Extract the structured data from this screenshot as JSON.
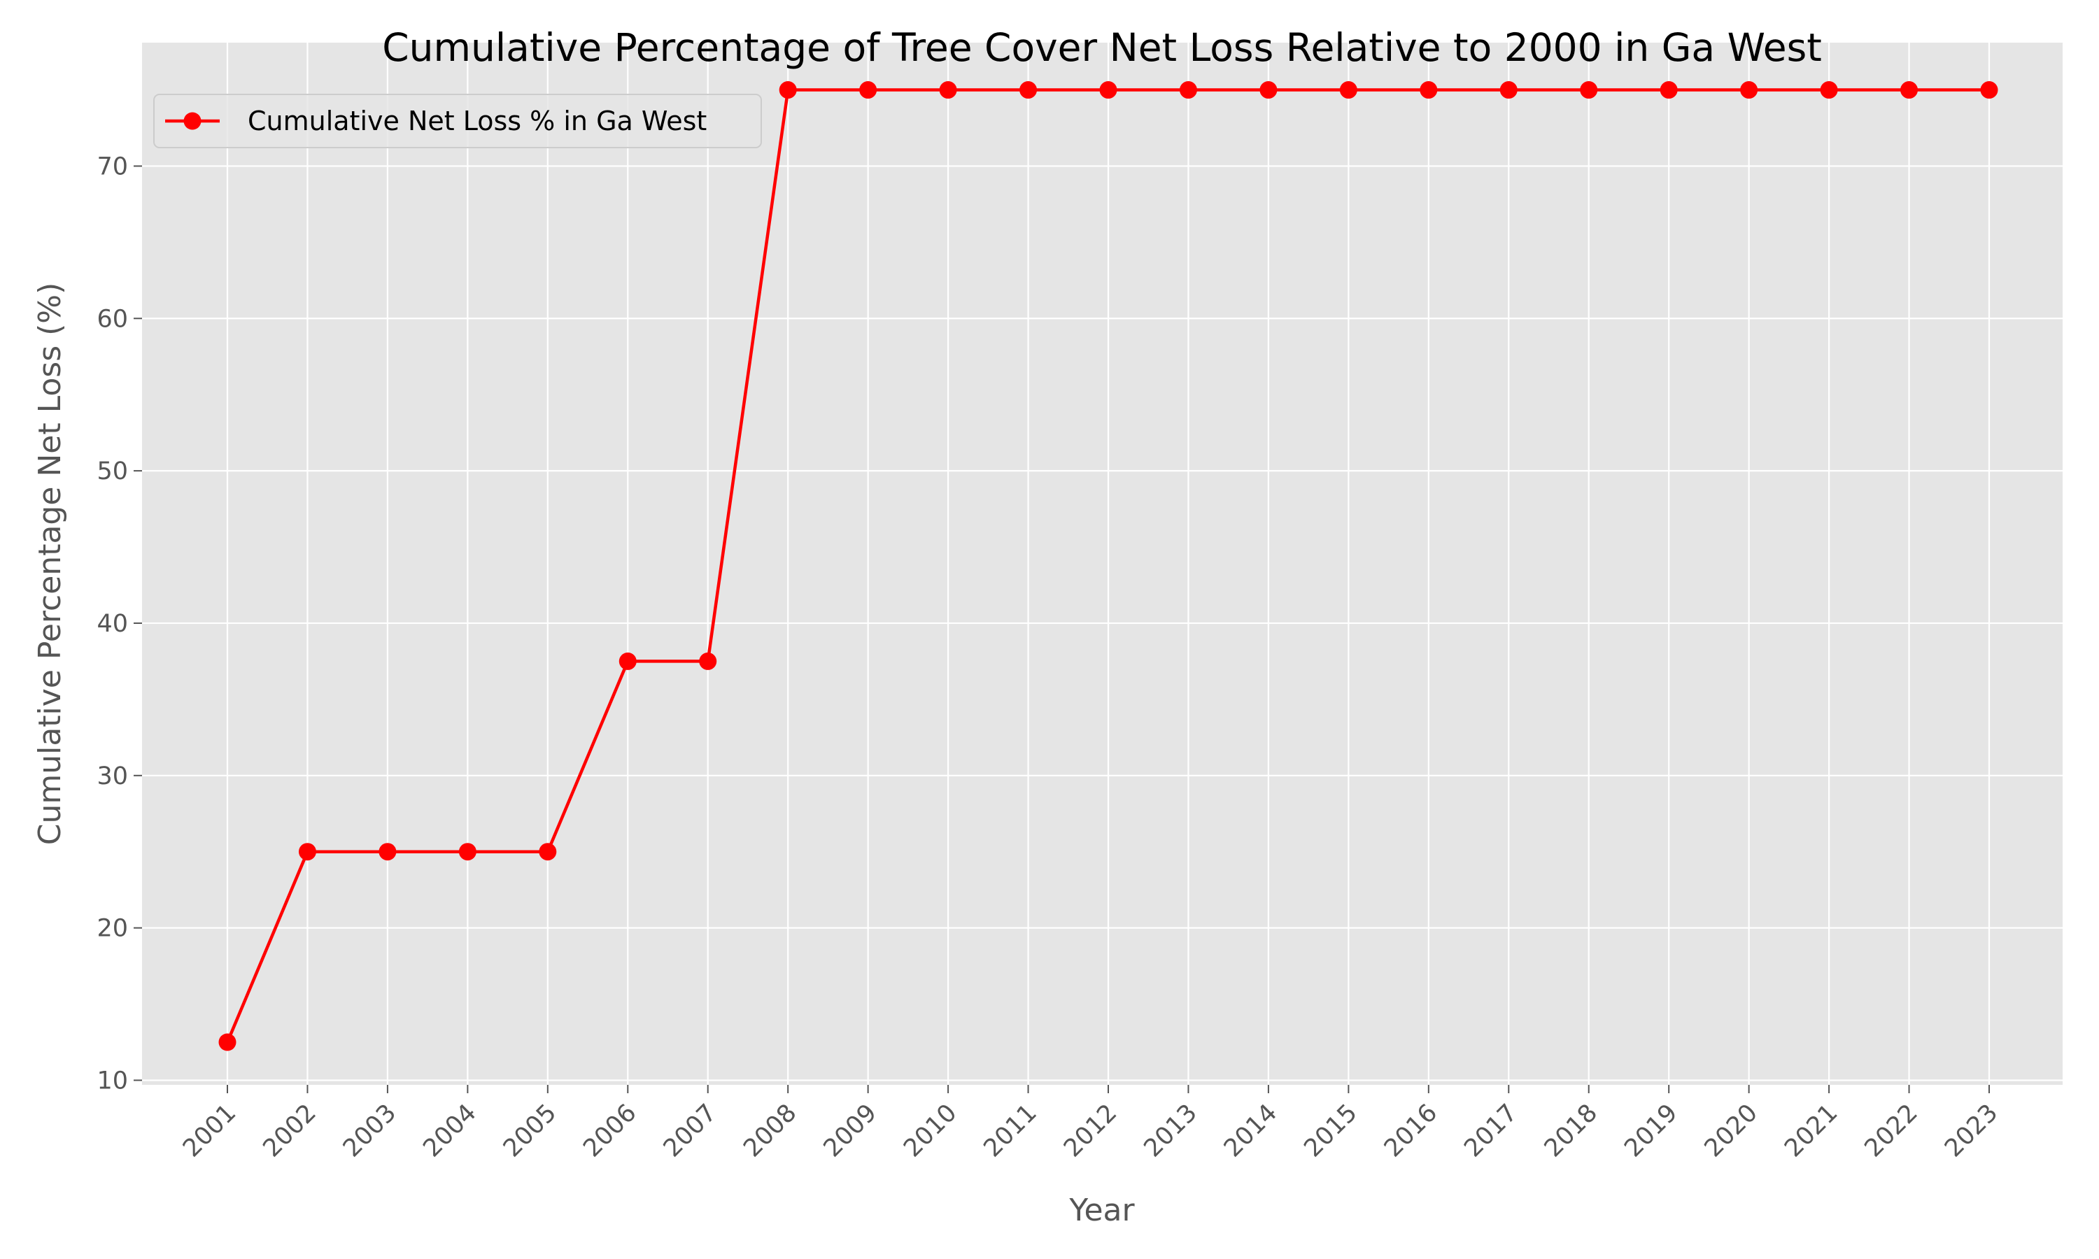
{
  "chart_data": {
    "type": "line",
    "title": "Cumulative Percentage of Tree Cover Net Loss Relative to 2000 in Ga West",
    "xlabel": "Year",
    "ylabel": "Cumulative Percentage Net Loss (%)",
    "categories": [
      "2001",
      "2002",
      "2003",
      "2004",
      "2005",
      "2006",
      "2007",
      "2008",
      "2009",
      "2010",
      "2011",
      "2012",
      "2013",
      "2014",
      "2015",
      "2016",
      "2017",
      "2018",
      "2019",
      "2020",
      "2021",
      "2022",
      "2023"
    ],
    "series": [
      {
        "name": "Cumulative Net Loss % in Ga West",
        "color": "#ff0000",
        "marker": "circle",
        "values": [
          12.5,
          25,
          25,
          25,
          25,
          37.5,
          37.5,
          75,
          75,
          75,
          75,
          75,
          75,
          75,
          75,
          75,
          75,
          75,
          75,
          75,
          75,
          75,
          75
        ]
      }
    ],
    "ylim": [
      9.7,
      78.1
    ],
    "yticks": [
      10,
      20,
      30,
      40,
      50,
      60,
      70
    ],
    "grid": true,
    "legend": "upper-left",
    "background": "#e5e5e5"
  }
}
